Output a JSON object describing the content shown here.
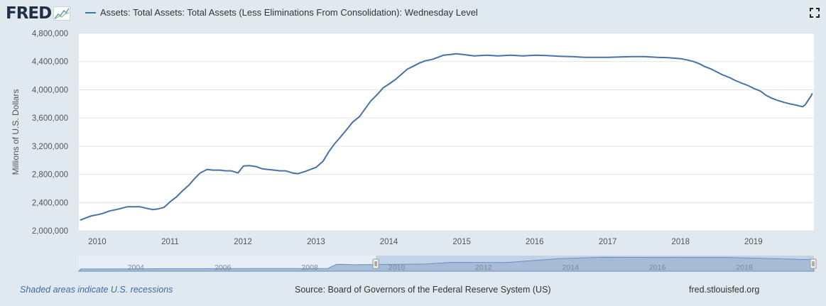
{
  "brand": {
    "name": "FRED",
    "logo_icon": "fred-chart-icon"
  },
  "header": {
    "legend_label": "Assets: Total Assets: Total Assets (Less Eliminations From Consolidation): Wednesday Level",
    "fullscreen_icon": "fullscreen-icon"
  },
  "colors": {
    "series": "#4572a7",
    "background": "#e1e9f0",
    "plot": "#ffffff",
    "navigator_fill": "#a4b8d5",
    "navigator_selection": "#b7c9e2"
  },
  "chart_data": {
    "type": "line",
    "xlabel": "",
    "ylabel": "Millions of U.S. Dollars",
    "ylim": [
      2000000,
      4800000
    ],
    "xlim": [
      "2009-10-01",
      "2019-10-31"
    ],
    "y_ticks": [
      2000000,
      2400000,
      2800000,
      3200000,
      3600000,
      4000000,
      4400000,
      4800000
    ],
    "y_tick_labels": [
      "2,000,000",
      "2,400,000",
      "2,800,000",
      "3,200,000",
      "3,600,000",
      "4,000,000",
      "4,400,000",
      "4,800,000"
    ],
    "x_tick_labels": [
      "2010",
      "2011",
      "2012",
      "2013",
      "2014",
      "2015",
      "2016",
      "2017",
      "2018",
      "2019"
    ],
    "grid": true,
    "series": [
      {
        "values": [
          [
            "2009-10-07",
            2150000
          ],
          [
            "2009-11-04",
            2180000
          ],
          [
            "2009-12-02",
            2210000
          ],
          [
            "2010-01-06",
            2230000
          ],
          [
            "2010-02-03",
            2250000
          ],
          [
            "2010-03-03",
            2280000
          ],
          [
            "2010-04-07",
            2300000
          ],
          [
            "2010-05-05",
            2320000
          ],
          [
            "2010-06-02",
            2340000
          ],
          [
            "2010-07-07",
            2340000
          ],
          [
            "2010-08-04",
            2340000
          ],
          [
            "2010-09-01",
            2320000
          ],
          [
            "2010-10-06",
            2300000
          ],
          [
            "2010-11-03",
            2310000
          ],
          [
            "2010-12-01",
            2330000
          ],
          [
            "2011-01-05",
            2420000
          ],
          [
            "2011-02-02",
            2480000
          ],
          [
            "2011-03-02",
            2560000
          ],
          [
            "2011-04-06",
            2650000
          ],
          [
            "2011-05-04",
            2740000
          ],
          [
            "2011-06-01",
            2820000
          ],
          [
            "2011-07-06",
            2870000
          ],
          [
            "2011-08-03",
            2860000
          ],
          [
            "2011-09-07",
            2860000
          ],
          [
            "2011-10-05",
            2850000
          ],
          [
            "2011-11-02",
            2850000
          ],
          [
            "2011-12-07",
            2820000
          ],
          [
            "2012-01-04",
            2920000
          ],
          [
            "2012-02-01",
            2925000
          ],
          [
            "2012-03-07",
            2910000
          ],
          [
            "2012-04-04",
            2880000
          ],
          [
            "2012-05-02",
            2870000
          ],
          [
            "2012-06-06",
            2860000
          ],
          [
            "2012-07-04",
            2850000
          ],
          [
            "2012-08-01",
            2850000
          ],
          [
            "2012-09-05",
            2820000
          ],
          [
            "2012-10-03",
            2810000
          ],
          [
            "2012-11-07",
            2840000
          ],
          [
            "2012-12-05",
            2870000
          ],
          [
            "2013-01-02",
            2900000
          ],
          [
            "2013-02-06",
            2990000
          ],
          [
            "2013-03-06",
            3120000
          ],
          [
            "2013-04-03",
            3230000
          ],
          [
            "2013-05-01",
            3320000
          ],
          [
            "2013-06-05",
            3440000
          ],
          [
            "2013-07-03",
            3540000
          ],
          [
            "2013-08-07",
            3620000
          ],
          [
            "2013-09-04",
            3730000
          ],
          [
            "2013-10-02",
            3840000
          ],
          [
            "2013-11-06",
            3940000
          ],
          [
            "2013-12-04",
            4030000
          ],
          [
            "2014-01-01",
            4080000
          ],
          [
            "2014-02-05",
            4150000
          ],
          [
            "2014-03-05",
            4220000
          ],
          [
            "2014-04-02",
            4290000
          ],
          [
            "2014-05-07",
            4340000
          ],
          [
            "2014-06-04",
            4380000
          ],
          [
            "2014-07-02",
            4410000
          ],
          [
            "2014-08-06",
            4430000
          ],
          [
            "2014-09-03",
            4460000
          ],
          [
            "2014-10-01",
            4490000
          ],
          [
            "2014-11-05",
            4500000
          ],
          [
            "2014-12-03",
            4510000
          ],
          [
            "2015-01-07",
            4500000
          ],
          [
            "2015-03-04",
            4480000
          ],
          [
            "2015-05-06",
            4490000
          ],
          [
            "2015-07-01",
            4480000
          ],
          [
            "2015-09-02",
            4490000
          ],
          [
            "2015-11-04",
            4480000
          ],
          [
            "2016-01-06",
            4490000
          ],
          [
            "2016-03-02",
            4485000
          ],
          [
            "2016-05-04",
            4475000
          ],
          [
            "2016-07-06",
            4470000
          ],
          [
            "2016-09-07",
            4460000
          ],
          [
            "2016-11-02",
            4460000
          ],
          [
            "2017-01-04",
            4460000
          ],
          [
            "2017-03-01",
            4465000
          ],
          [
            "2017-05-03",
            4470000
          ],
          [
            "2017-07-05",
            4470000
          ],
          [
            "2017-09-06",
            4460000
          ],
          [
            "2017-11-01",
            4455000
          ],
          [
            "2018-01-03",
            4440000
          ],
          [
            "2018-02-07",
            4420000
          ],
          [
            "2018-03-07",
            4400000
          ],
          [
            "2018-04-04",
            4370000
          ],
          [
            "2018-05-02",
            4330000
          ],
          [
            "2018-06-06",
            4290000
          ],
          [
            "2018-07-04",
            4250000
          ],
          [
            "2018-08-01",
            4210000
          ],
          [
            "2018-09-05",
            4170000
          ],
          [
            "2018-10-03",
            4130000
          ],
          [
            "2018-11-07",
            4090000
          ],
          [
            "2018-12-05",
            4060000
          ],
          [
            "2019-01-02",
            4020000
          ],
          [
            "2019-02-06",
            3980000
          ],
          [
            "2019-03-06",
            3920000
          ],
          [
            "2019-04-03",
            3880000
          ],
          [
            "2019-05-01",
            3850000
          ],
          [
            "2019-06-05",
            3820000
          ],
          [
            "2019-07-03",
            3800000
          ],
          [
            "2019-08-07",
            3780000
          ],
          [
            "2019-09-04",
            3760000
          ],
          [
            "2019-09-18",
            3790000
          ],
          [
            "2019-10-02",
            3850000
          ],
          [
            "2019-10-16",
            3910000
          ],
          [
            "2019-10-23",
            3950000
          ]
        ]
      }
    ],
    "navigator": {
      "x_tick_labels": [
        "2004",
        "2006",
        "2008",
        "2010",
        "2012",
        "2014",
        "2016",
        "2018"
      ],
      "xlim": [
        "2002-12-01",
        "2019-10-31"
      ],
      "selection": [
        "2009-10-01",
        "2019-10-31"
      ],
      "values": [
        [
          "2002-12-18",
          720000
        ],
        [
          "2005-01-05",
          800000
        ],
        [
          "2007-01-03",
          860000
        ],
        [
          "2008-08-27",
          900000
        ],
        [
          "2008-09-24",
          1500000
        ],
        [
          "2008-11-05",
          2200000
        ],
        [
          "2008-12-17",
          2260000
        ],
        [
          "2009-04-01",
          2100000
        ],
        [
          "2009-10-07",
          2150000
        ],
        [
          "2010-12-01",
          2330000
        ],
        [
          "2011-07-06",
          2870000
        ],
        [
          "2012-10-03",
          2810000
        ],
        [
          "2013-12-04",
          4030000
        ],
        [
          "2014-12-03",
          4510000
        ],
        [
          "2017-11-01",
          4455000
        ],
        [
          "2019-09-04",
          3760000
        ],
        [
          "2019-10-23",
          3950000
        ]
      ]
    }
  },
  "footer": {
    "recession_note": "Shaded areas indicate U.S. recessions",
    "source": "Source: Board of Governors of the Federal Reserve System (US)",
    "site": "fred.stlouisfed.org"
  }
}
